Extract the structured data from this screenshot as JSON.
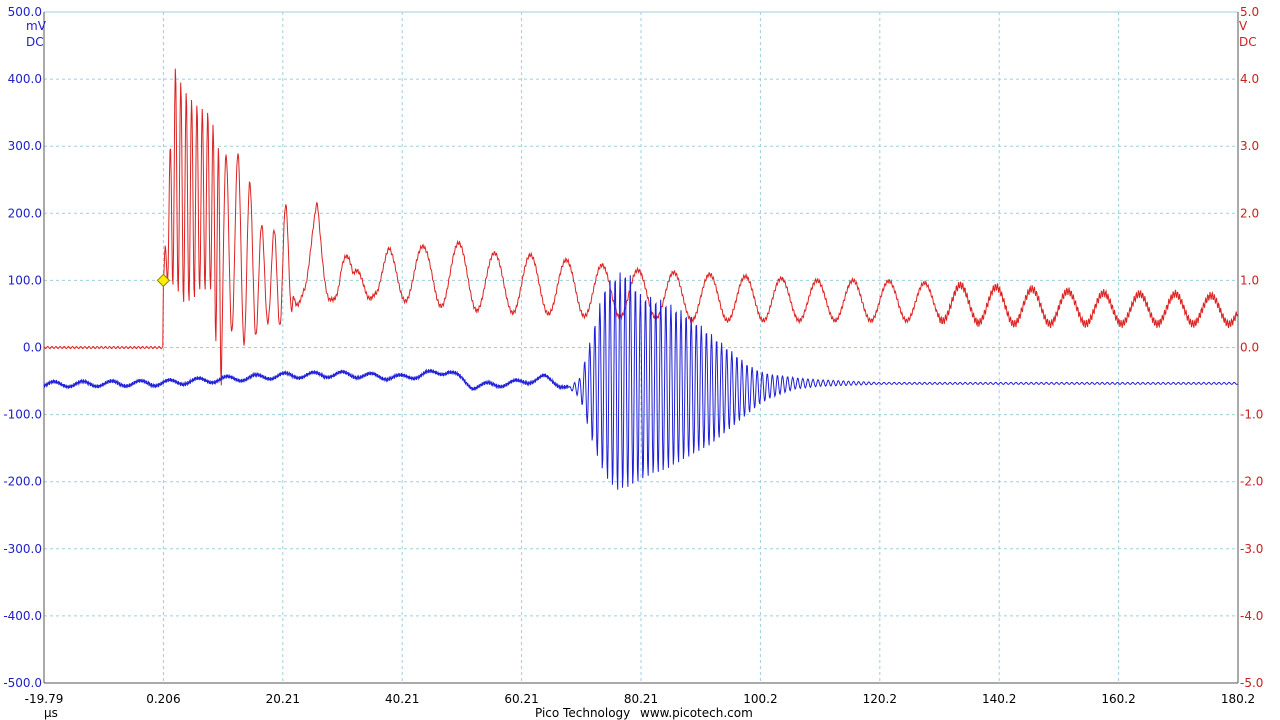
{
  "colors": {
    "channel_a": "#1f1fd8",
    "channel_b": "#dd2222",
    "grid": "#9fcfdf",
    "trigger_marker": "#ffee00",
    "background": "#ffffff"
  },
  "footer": {
    "vendor": "Pico Technology",
    "website": "www.picotech.com"
  },
  "chart_data": {
    "type": "line",
    "title": "",
    "grid": true,
    "xlabel": "µs",
    "xlim": [
      -19.79,
      180.2
    ],
    "x_tick_labels": [
      "-19.79",
      "0.206",
      "20.21",
      "40.21",
      "60.21",
      "80.21",
      "100.2",
      "120.2",
      "140.2",
      "160.2",
      "180.2"
    ],
    "left_axis": {
      "unit": "mV",
      "coupling": "DC",
      "ylim": [
        -500,
        500
      ],
      "tick_labels": [
        "500.0",
        "400.0",
        "300.0",
        "200.0",
        "100.0",
        "0.0",
        "-100.0",
        "-200.0",
        "-300.0",
        "-400.0",
        "-500.0"
      ]
    },
    "right_axis": {
      "unit": "V",
      "coupling": "DC",
      "ylim": [
        -5,
        5
      ],
      "tick_labels": [
        "5.0",
        "4.0",
        "3.0",
        "2.0",
        "1.0",
        "0.0",
        "-1.0",
        "-2.0",
        "-3.0",
        "-4.0",
        "-5.0"
      ]
    },
    "trigger": {
      "x": 0.206,
      "y": 100,
      "axis": "left"
    },
    "series": [
      {
        "axis": "left",
        "x": [
          -19.79,
          0.0,
          20.0,
          30.0,
          40.0,
          48.0,
          52.0,
          60.0,
          64.0,
          68.0,
          70.0,
          72.0,
          74.0,
          76.0,
          78.0,
          80.0,
          82.0,
          84.0,
          86.0,
          88.0,
          90.0,
          92.0,
          94.0,
          96.0,
          98.0,
          100.0,
          102.0,
          104.0,
          106.0,
          110.0,
          120.0,
          130.0,
          140.0,
          150.0,
          160.0,
          170.0,
          180.2
        ],
        "y": [
          -55,
          -53,
          -42,
          -40,
          -45,
          -35,
          -58,
          -52,
          -45,
          -60,
          -75,
          -140,
          -190,
          -215,
          -210,
          -200,
          -190,
          -185,
          -175,
          -165,
          -155,
          -145,
          -130,
          -115,
          -100,
          -85,
          -75,
          -68,
          -62,
          -58,
          -55,
          -55,
          -55,
          -55,
          -55,
          -55,
          -55
        ],
        "y_upper": [
          -55,
          -53,
          -42,
          -40,
          -45,
          -35,
          -58,
          -52,
          -45,
          -60,
          -45,
          20,
          90,
          110,
          115,
          80,
          75,
          70,
          60,
          50,
          35,
          20,
          5,
          -10,
          -25,
          -35,
          -40,
          -42,
          -45,
          -48,
          -52,
          -52,
          -52,
          -52,
          -52,
          -52,
          -52
        ]
      },
      {
        "axis": "right",
        "x": [
          -19.79,
          0.0,
          0.206,
          2.0,
          4.0,
          6.0,
          8.0,
          10.0,
          12.0,
          14.0,
          16.0,
          18.0,
          20.0,
          22.0,
          24.0,
          26.0,
          28.0,
          30.0,
          32.0,
          34.0,
          36.0,
          38.0,
          40.0,
          44.0,
          48.0,
          52.0,
          56.0,
          60.0,
          64.0,
          68.0,
          72.0,
          76.0,
          80.0,
          90.0,
          100.0,
          110.0,
          120.0,
          130.0,
          140.0,
          150.0,
          160.0,
          170.0,
          180.2
        ],
        "y": [
          0.0,
          0.0,
          1.0,
          4.2,
          3.8,
          3.6,
          3.5,
          2.8,
          3.0,
          2.7,
          2.0,
          1.5,
          2.2,
          2.0,
          1.2,
          2.2,
          0.8,
          1.8,
          1.1,
          1.6,
          1.0,
          1.5,
          1.6,
          1.5,
          1.6,
          1.5,
          1.4,
          1.4,
          1.35,
          1.3,
          1.25,
          1.2,
          1.15,
          1.1,
          1.05,
          1.0,
          1.0,
          0.95,
          0.9,
          0.85,
          0.8,
          0.8,
          0.75
        ],
        "y_lower": [
          0.0,
          0.0,
          1.0,
          0.9,
          0.6,
          0.8,
          0.9,
          -0.7,
          0.4,
          0.0,
          0.2,
          0.4,
          0.3,
          0.6,
          0.7,
          0.65,
          0.7,
          0.75,
          0.75,
          0.75,
          0.7,
          0.7,
          0.7,
          0.65,
          0.6,
          0.55,
          0.55,
          0.5,
          0.5,
          0.5,
          0.45,
          0.45,
          0.45,
          0.4,
          0.4,
          0.4,
          0.4,
          0.4,
          0.35,
          0.35,
          0.35,
          0.35,
          0.35
        ]
      }
    ]
  }
}
